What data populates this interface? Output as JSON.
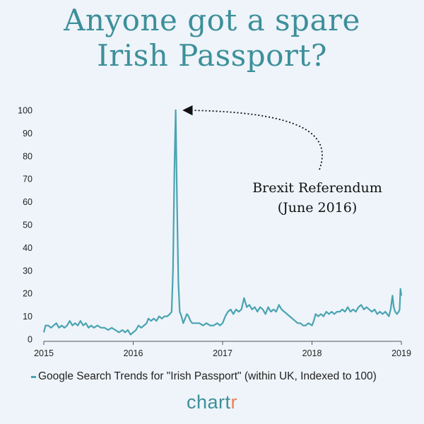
{
  "title": {
    "line1": "Anyone got a spare",
    "line2": "Irish Passport?"
  },
  "brand": {
    "main": "chart",
    "accent": "r"
  },
  "colors": {
    "title": "#3d8f9b",
    "line": "#4aa3b2",
    "brand_accent": "#ef7f52",
    "background": "#eef4f9"
  },
  "chart_data": {
    "type": "line",
    "title": "",
    "xlabel": "",
    "ylabel": "",
    "xlim": [
      2015,
      2019
    ],
    "ylim": [
      0,
      100
    ],
    "x_ticks": [
      "2015",
      "2016",
      "2017",
      "2018",
      "2019"
    ],
    "y_ticks": [
      "0",
      "10",
      "20",
      "30",
      "40",
      "50",
      "60",
      "70",
      "80",
      "90",
      "100"
    ],
    "grid": false,
    "legend": "bottom",
    "series": [
      {
        "name": "Google Search Trends for \"Irish Passport\" (within UK, Indexed to 100)",
        "points": [
          [
            2015.0,
            3
          ],
          [
            2015.02,
            6
          ],
          [
            2015.05,
            6
          ],
          [
            2015.08,
            5
          ],
          [
            2015.11,
            6
          ],
          [
            2015.14,
            7
          ],
          [
            2015.17,
            5
          ],
          [
            2015.2,
            6
          ],
          [
            2015.23,
            5
          ],
          [
            2015.26,
            6
          ],
          [
            2015.29,
            8
          ],
          [
            2015.32,
            6
          ],
          [
            2015.35,
            7
          ],
          [
            2015.38,
            6
          ],
          [
            2015.41,
            8
          ],
          [
            2015.44,
            6
          ],
          [
            2015.47,
            7
          ],
          [
            2015.5,
            5
          ],
          [
            2015.53,
            6
          ],
          [
            2015.56,
            5
          ],
          [
            2015.6,
            6
          ],
          [
            2015.64,
            5
          ],
          [
            2015.68,
            5
          ],
          [
            2015.72,
            4
          ],
          [
            2015.76,
            5
          ],
          [
            2015.8,
            4
          ],
          [
            2015.84,
            3
          ],
          [
            2015.88,
            4
          ],
          [
            2015.91,
            3
          ],
          [
            2015.94,
            4
          ],
          [
            2015.97,
            2
          ],
          [
            2016.0,
            3
          ],
          [
            2016.03,
            4
          ],
          [
            2016.06,
            6
          ],
          [
            2016.09,
            5
          ],
          [
            2016.12,
            6
          ],
          [
            2016.15,
            7
          ],
          [
            2016.17,
            9
          ],
          [
            2016.2,
            8
          ],
          [
            2016.23,
            9
          ],
          [
            2016.26,
            8
          ],
          [
            2016.29,
            10
          ],
          [
            2016.32,
            9
          ],
          [
            2016.35,
            10
          ],
          [
            2016.38,
            10
          ],
          [
            2016.41,
            11
          ],
          [
            2016.43,
            12
          ],
          [
            2016.445,
            30
          ],
          [
            2016.46,
            72
          ],
          [
            2016.475,
            100
          ],
          [
            2016.49,
            60
          ],
          [
            2016.505,
            25
          ],
          [
            2016.52,
            12
          ],
          [
            2016.54,
            10
          ],
          [
            2016.56,
            7
          ],
          [
            2016.58,
            9
          ],
          [
            2016.6,
            11
          ],
          [
            2016.62,
            10
          ],
          [
            2016.64,
            8
          ],
          [
            2016.66,
            7
          ],
          [
            2016.7,
            7
          ],
          [
            2016.74,
            7
          ],
          [
            2016.78,
            6
          ],
          [
            2016.82,
            7
          ],
          [
            2016.86,
            6
          ],
          [
            2016.9,
            6
          ],
          [
            2016.94,
            7
          ],
          [
            2016.97,
            6
          ],
          [
            2017.0,
            7
          ],
          [
            2017.03,
            10
          ],
          [
            2017.06,
            12
          ],
          [
            2017.09,
            13
          ],
          [
            2017.12,
            11
          ],
          [
            2017.15,
            13
          ],
          [
            2017.18,
            12
          ],
          [
            2017.21,
            13
          ],
          [
            2017.24,
            18
          ],
          [
            2017.27,
            14
          ],
          [
            2017.3,
            15
          ],
          [
            2017.33,
            13
          ],
          [
            2017.36,
            14
          ],
          [
            2017.39,
            12
          ],
          [
            2017.42,
            14
          ],
          [
            2017.45,
            13
          ],
          [
            2017.48,
            11
          ],
          [
            2017.51,
            14
          ],
          [
            2017.54,
            12
          ],
          [
            2017.57,
            13
          ],
          [
            2017.6,
            12
          ],
          [
            2017.63,
            15
          ],
          [
            2017.66,
            13
          ],
          [
            2017.69,
            12
          ],
          [
            2017.72,
            11
          ],
          [
            2017.75,
            10
          ],
          [
            2017.78,
            9
          ],
          [
            2017.81,
            8
          ],
          [
            2017.84,
            7
          ],
          [
            2017.87,
            7
          ],
          [
            2017.9,
            6
          ],
          [
            2017.93,
            6
          ],
          [
            2017.96,
            7
          ],
          [
            2018.0,
            6
          ],
          [
            2018.02,
            8
          ],
          [
            2018.04,
            11
          ],
          [
            2018.07,
            10
          ],
          [
            2018.1,
            11
          ],
          [
            2018.13,
            10
          ],
          [
            2018.16,
            12
          ],
          [
            2018.19,
            11
          ],
          [
            2018.22,
            12
          ],
          [
            2018.25,
            11
          ],
          [
            2018.28,
            12
          ],
          [
            2018.31,
            12
          ],
          [
            2018.34,
            13
          ],
          [
            2018.37,
            12
          ],
          [
            2018.4,
            14
          ],
          [
            2018.43,
            12
          ],
          [
            2018.46,
            13
          ],
          [
            2018.49,
            12
          ],
          [
            2018.52,
            14
          ],
          [
            2018.55,
            15
          ],
          [
            2018.58,
            13
          ],
          [
            2018.61,
            14
          ],
          [
            2018.64,
            13
          ],
          [
            2018.67,
            12
          ],
          [
            2018.7,
            13
          ],
          [
            2018.73,
            11
          ],
          [
            2018.76,
            12
          ],
          [
            2018.79,
            11
          ],
          [
            2018.82,
            12
          ],
          [
            2018.84,
            11
          ],
          [
            2018.86,
            10
          ],
          [
            2018.88,
            13
          ],
          [
            2018.9,
            19
          ],
          [
            2018.915,
            14
          ],
          [
            2018.93,
            12
          ],
          [
            2018.95,
            11
          ],
          [
            2018.97,
            12
          ],
          [
            2018.98,
            13
          ],
          [
            2018.99,
            22
          ],
          [
            2019.0,
            19
          ]
        ]
      }
    ],
    "annotation": {
      "text_line1": "Brexit Referendum",
      "text_line2": "(June 2016)",
      "points_to": [
        2016.5,
        100
      ]
    }
  }
}
